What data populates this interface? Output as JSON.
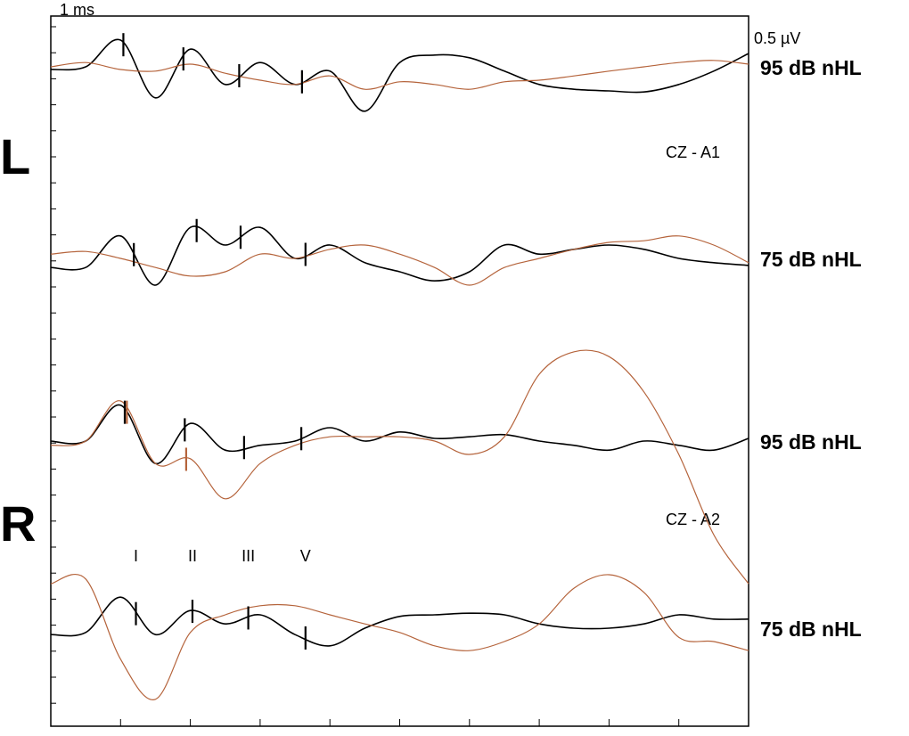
{
  "labels": {
    "time_scale": "1 ms",
    "amp_scale": "0.5 µV",
    "left": "L",
    "right": "R",
    "left_montage": "CZ - A1",
    "right_montage": "CZ - A2",
    "waves": [
      "I",
      "II",
      "III",
      "V"
    ]
  },
  "chart_data": {
    "type": "waveform",
    "xlim": [
      0,
      10
    ],
    "xticks": [
      1,
      2,
      3,
      4,
      5,
      6,
      7,
      8,
      9
    ],
    "x": [
      0,
      0.5,
      1,
      1.5,
      2,
      2.5,
      3,
      3.5,
      4,
      4.5,
      5,
      5.5,
      6,
      6.5,
      7,
      7.5,
      8,
      8.5,
      9,
      9.5,
      10
    ],
    "rows": [
      {
        "label": "95 dB nHL",
        "series": [
          {
            "color": "#000000",
            "values": [
              -0.05,
              0,
              0.5,
              -0.58,
              0.33,
              -0.33,
              0.08,
              -0.33,
              -0.08,
              -0.83,
              0.08,
              0.22,
              0.17,
              -0.08,
              -0.33,
              -0.42,
              -0.45,
              -0.47,
              -0.33,
              -0.08,
              0.25
            ]
          },
          {
            "color": "#b5643c",
            "values": [
              0,
              0.08,
              -0.05,
              -0.08,
              0.05,
              -0.12,
              -0.25,
              -0.33,
              -0.17,
              -0.42,
              -0.28,
              -0.33,
              -0.42,
              -0.28,
              -0.25,
              -0.17,
              -0.08,
              0,
              0.08,
              0.12,
              0.05
            ]
          }
        ],
        "peaks": [
          {
            "color": "#000000",
            "x": [
              1.04,
              1.9,
              2.7,
              3.6
            ]
          }
        ]
      },
      {
        "label": "75 dB nHL",
        "series": [
          {
            "color": "#000000",
            "values": [
              -0.17,
              -0.17,
              0.42,
              -0.5,
              0.58,
              0.25,
              0.58,
              0,
              0.25,
              -0.08,
              -0.25,
              -0.42,
              -0.25,
              0.25,
              0.08,
              0.17,
              0.25,
              0.17,
              0,
              -0.08,
              -0.13
            ]
          },
          {
            "color": "#b5643c",
            "values": [
              0.08,
              0.13,
              0,
              -0.17,
              -0.33,
              -0.25,
              0.08,
              0,
              0.17,
              0.25,
              0.08,
              -0.17,
              -0.5,
              -0.17,
              0,
              0.17,
              0.3,
              0.33,
              0.42,
              0.25,
              -0.08
            ]
          }
        ],
        "peaks": [
          {
            "color": "#000000",
            "x": [
              1.19,
              2.09,
              2.72,
              3.65
            ]
          }
        ]
      },
      {
        "label": "95 dB nHL",
        "series": [
          {
            "color": "#000000",
            "values": [
              0,
              0,
              0.67,
              -0.42,
              0.33,
              -0.17,
              -0.08,
              0,
              0.25,
              0,
              0.17,
              0.05,
              0.08,
              0.12,
              0,
              -0.08,
              -0.17,
              0,
              -0.08,
              -0.17,
              0.05
            ]
          },
          {
            "color": "#b5643c",
            "values": [
              -0.08,
              0,
              0.75,
              -0.42,
              -0.33,
              -1.08,
              -0.42,
              -0.08,
              0.08,
              0.08,
              0.08,
              0,
              -0.25,
              0.08,
              1.25,
              1.67,
              1.58,
              0.92,
              -0.25,
              -1.75,
              -2.67
            ]
          }
        ],
        "peaks": [
          {
            "color": "#000000",
            "x": [
              1.06,
              1.92,
              2.77,
              3.59
            ]
          },
          {
            "color": "#b5643c",
            "x": [
              1.09,
              1.94
            ]
          }
        ]
      },
      {
        "label": "75 dB nHL",
        "series": [
          {
            "color": "#000000",
            "values": [
              -0.12,
              -0.08,
              0.58,
              -0.12,
              0.33,
              0.08,
              0.25,
              -0.12,
              -0.33,
              0,
              0.22,
              0.25,
              0.28,
              0.25,
              0.08,
              0,
              0,
              0.08,
              0.25,
              0.17,
              0.17
            ]
          },
          {
            "color": "#b5643c",
            "values": [
              0.83,
              0.92,
              -0.58,
              -1.33,
              -0.08,
              0.25,
              0.42,
              0.42,
              0.25,
              0.08,
              -0.08,
              -0.33,
              -0.42,
              -0.25,
              0.08,
              0.75,
              1,
              0.67,
              -0.17,
              -0.25,
              -0.42
            ]
          }
        ],
        "peaks": [
          {
            "color": "#000000",
            "x": [
              1.22,
              2.03,
              2.83,
              3.65
            ]
          }
        ]
      }
    ]
  }
}
